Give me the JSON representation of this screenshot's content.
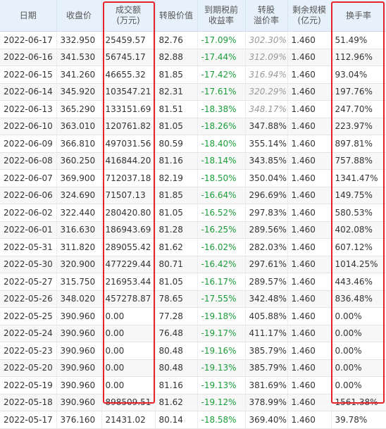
{
  "table": {
    "headers": [
      [
        "日期"
      ],
      [
        "收盘价"
      ],
      [
        "成交额",
        "(万元)"
      ],
      [
        "转股价值"
      ],
      [
        "到期税前",
        "收益率"
      ],
      [
        "转股",
        "溢价率"
      ],
      [
        "剩余规模",
        "(亿元)"
      ],
      [
        "换手率"
      ]
    ],
    "rows": [
      [
        "2022-06-17",
        "332.950",
        "25459.57",
        "82.76",
        "-17.09%",
        "302.30%",
        "1.460",
        "51.49%"
      ],
      [
        "2022-06-16",
        "341.530",
        "56745.17",
        "82.88",
        "-17.44%",
        "312.09%",
        "1.460",
        "112.96%"
      ],
      [
        "2022-06-15",
        "341.260",
        "46655.32",
        "81.85",
        "-17.42%",
        "316.94%",
        "1.460",
        "93.04%"
      ],
      [
        "2022-06-14",
        "345.920",
        "103547.21",
        "82.31",
        "-17.61%",
        "320.29%",
        "1.460",
        "197.76%"
      ],
      [
        "2022-06-13",
        "365.290",
        "133151.69",
        "81.51",
        "-18.38%",
        "348.17%",
        "1.460",
        "247.70%"
      ],
      [
        "2022-06-10",
        "363.010",
        "120761.82",
        "81.05",
        "-18.26%",
        "347.88%",
        "1.460",
        "223.97%"
      ],
      [
        "2022-06-09",
        "366.810",
        "497031.56",
        "80.59",
        "-18.40%",
        "355.14%",
        "1.460",
        "897.81%"
      ],
      [
        "2022-06-08",
        "360.250",
        "416844.20",
        "81.16",
        "-18.14%",
        "343.85%",
        "1.460",
        "757.88%"
      ],
      [
        "2022-06-07",
        "369.900",
        "712037.18",
        "82.19",
        "-18.50%",
        "350.04%",
        "1.460",
        "1341.47%"
      ],
      [
        "2022-06-06",
        "324.690",
        "71507.13",
        "81.85",
        "-16.64%",
        "296.69%",
        "1.460",
        "149.75%"
      ],
      [
        "2022-06-02",
        "322.440",
        "280420.80",
        "81.05",
        "-16.52%",
        "297.83%",
        "1.460",
        "580.53%"
      ],
      [
        "2022-06-01",
        "316.630",
        "186943.69",
        "81.28",
        "-16.25%",
        "289.56%",
        "1.460",
        "402.08%"
      ],
      [
        "2022-05-31",
        "311.820",
        "289055.42",
        "81.62",
        "-16.02%",
        "282.03%",
        "1.460",
        "607.12%"
      ],
      [
        "2022-05-30",
        "320.900",
        "477229.44",
        "80.71",
        "-16.42%",
        "297.61%",
        "1.460",
        "1014.25%"
      ],
      [
        "2022-05-27",
        "315.750",
        "216953.44",
        "81.05",
        "-16.17%",
        "289.57%",
        "1.460",
        "443.46%"
      ],
      [
        "2022-05-26",
        "348.020",
        "457278.87",
        "78.65",
        "-17.55%",
        "342.48%",
        "1.460",
        "836.48%"
      ],
      [
        "2022-05-25",
        "390.960",
        "0.00",
        "77.28",
        "-19.18%",
        "405.88%",
        "1.460",
        "0.00%"
      ],
      [
        "2022-05-24",
        "390.960",
        "0.00",
        "76.48",
        "-19.17%",
        "411.17%",
        "1.460",
        "0.00%"
      ],
      [
        "2022-05-23",
        "390.960",
        "0.00",
        "80.48",
        "-19.16%",
        "385.79%",
        "1.460",
        "0.00%"
      ],
      [
        "2022-05-20",
        "390.960",
        "0.00",
        "80.48",
        "-19.13%",
        "385.79%",
        "1.460",
        "0.00%"
      ],
      [
        "2022-05-19",
        "390.960",
        "0.00",
        "81.16",
        "-19.13%",
        "381.69%",
        "1.460",
        "0.00%"
      ],
      [
        "2022-05-18",
        "390.960",
        "898509.51",
        "81.62",
        "-19.12%",
        "378.99%",
        "1.460",
        "1561.38%"
      ],
      [
        "2022-05-17",
        "376.160",
        "21431.02",
        "80.14",
        "-18.58%",
        "369.40%",
        "1.460",
        "39.78%"
      ]
    ],
    "grey_premium_rows": [
      0,
      1,
      2,
      3,
      4
    ],
    "colors": {
      "header_bg": "#e6f1fb",
      "negative_green": "#1b9e3a",
      "highlight_red": "#e8222a"
    }
  }
}
